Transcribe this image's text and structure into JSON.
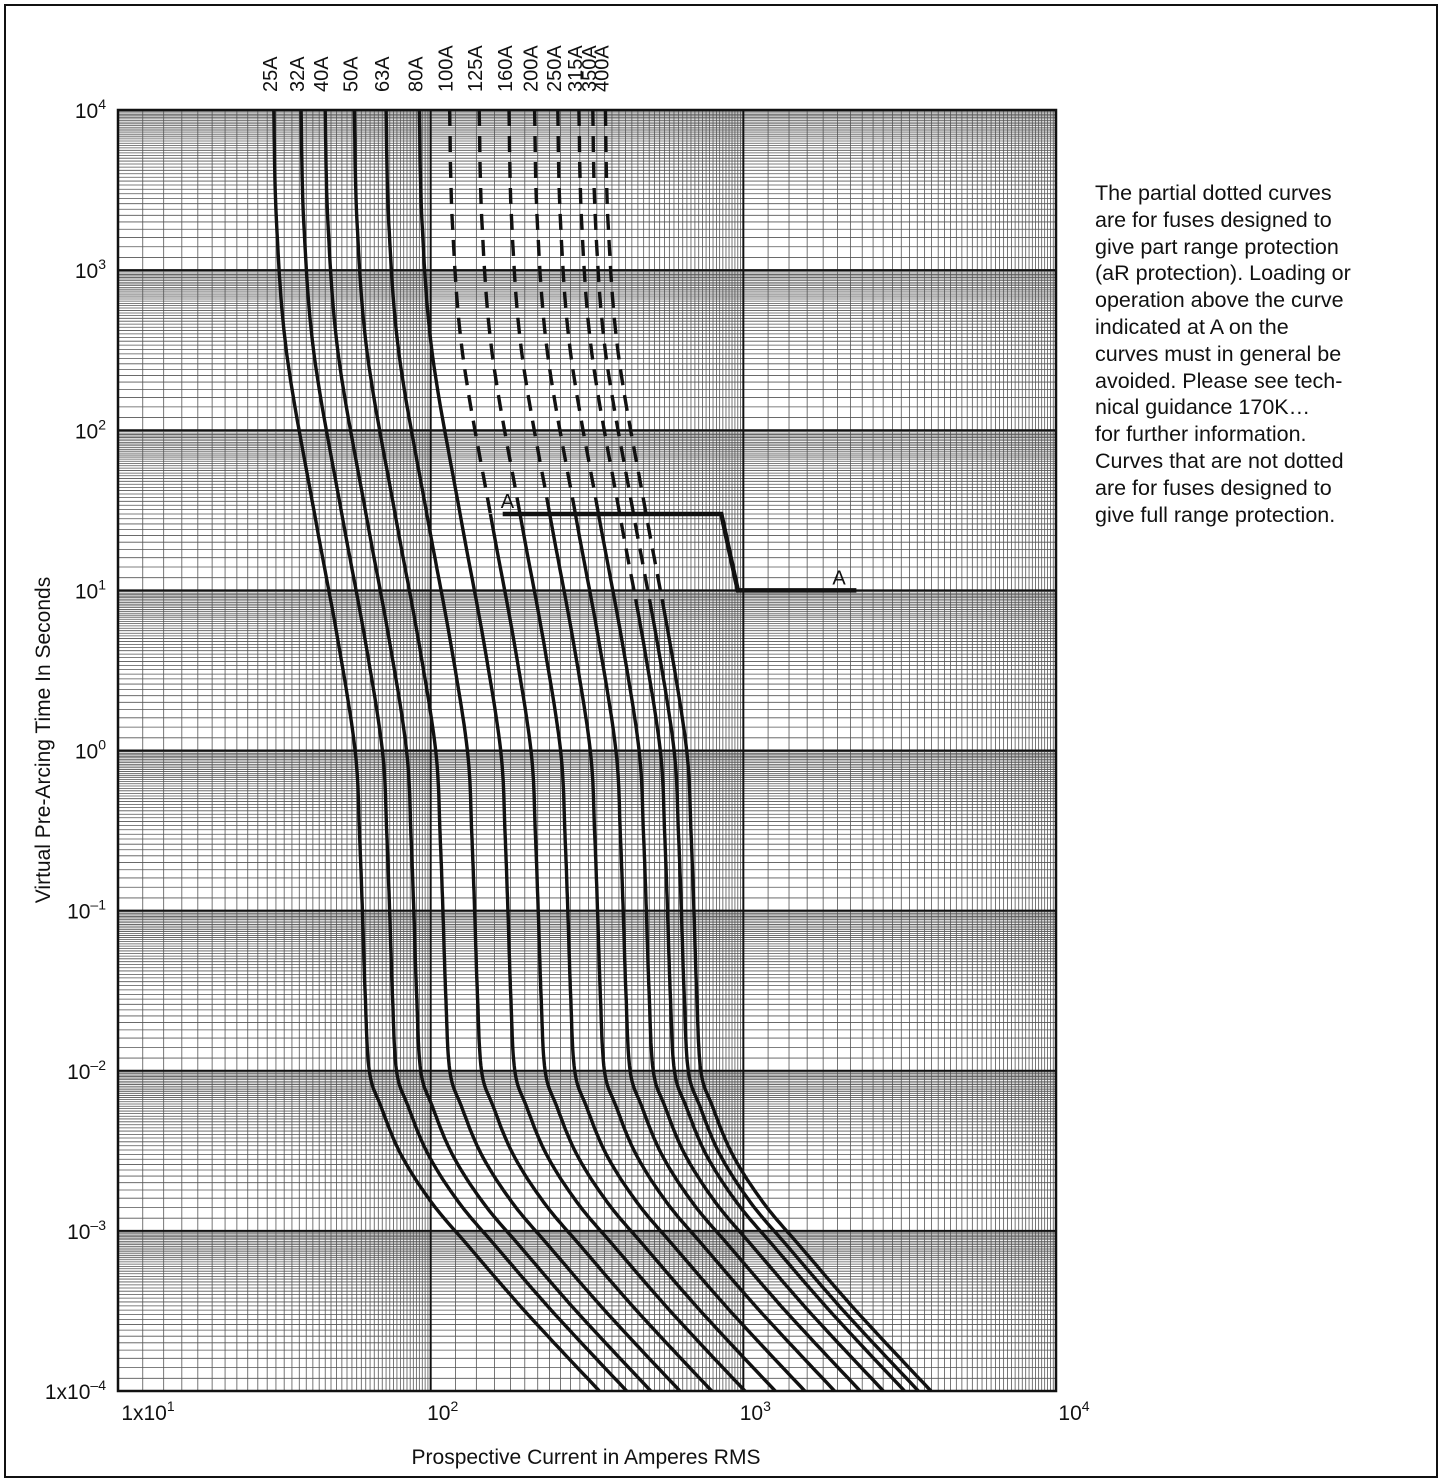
{
  "chart_data": {
    "type": "line",
    "scale": "log-log",
    "xlabel": "Prospective Current in Amperes RMS",
    "ylabel": "Virtual Pre-Arcing Time In Seconds",
    "xlim": [
      10,
      10000
    ],
    "ylim": [
      0.0001,
      10000
    ],
    "x_ticks": [
      {
        "value": 10,
        "base": "1x10",
        "exp": "1"
      },
      {
        "value": 100,
        "base": "10",
        "exp": "2"
      },
      {
        "value": 1000,
        "base": "10",
        "exp": "3"
      },
      {
        "value": 10000,
        "base": "10",
        "exp": "4"
      }
    ],
    "y_ticks": [
      {
        "value": 10000,
        "base": "10",
        "exp": "4"
      },
      {
        "value": 1000,
        "base": "10",
        "exp": "3"
      },
      {
        "value": 100,
        "base": "10",
        "exp": "2"
      },
      {
        "value": 10,
        "base": "10",
        "exp": "1"
      },
      {
        "value": 1,
        "base": "10",
        "exp": "0"
      },
      {
        "value": 0.1,
        "base": "10",
        "exp": "–1"
      },
      {
        "value": 0.01,
        "base": "10",
        "exp": "–2"
      },
      {
        "value": 0.001,
        "base": "10",
        "exp": "–3"
      },
      {
        "value": 0.0001,
        "base": "1x10",
        "exp": "–4"
      }
    ],
    "grid": true,
    "curve_shape": {
      "points": [
        [
          1.0,
          10000
        ],
        [
          1.02,
          2000
        ],
        [
          1.1,
          300
        ],
        [
          1.35,
          30
        ],
        [
          1.6,
          5
        ],
        [
          1.82,
          1.0
        ],
        [
          1.88,
          0.3
        ],
        [
          1.92,
          0.1
        ],
        [
          1.96,
          0.03
        ],
        [
          2.02,
          0.01
        ],
        [
          2.2,
          0.006
        ],
        [
          2.55,
          0.003
        ],
        [
          3.2,
          0.0015
        ],
        [
          4.2,
          0.0008
        ],
        [
          6.5,
          0.0003
        ],
        [
          11.0,
          0.0001
        ]
      ]
    },
    "series": [
      {
        "name": "25A",
        "i_ref": 31.5,
        "dashed": false
      },
      {
        "name": "32A",
        "i_ref": 38.5,
        "dashed": false
      },
      {
        "name": "40A",
        "i_ref": 46,
        "dashed": false
      },
      {
        "name": "50A",
        "i_ref": 57,
        "dashed": false
      },
      {
        "name": "63A",
        "i_ref": 72,
        "dashed": false
      },
      {
        "name": "80A",
        "i_ref": 92,
        "dashed": false
      },
      {
        "name": "100A",
        "i_ref": 115,
        "dashed": true,
        "solid_from_y": 30
      },
      {
        "name": "125A",
        "i_ref": 143,
        "dashed": true,
        "solid_from_y": 30
      },
      {
        "name": "160A",
        "i_ref": 178,
        "dashed": true,
        "solid_from_y": 30
      },
      {
        "name": "200A",
        "i_ref": 215,
        "dashed": true,
        "solid_from_y": 30
      },
      {
        "name": "250A",
        "i_ref": 255,
        "dashed": true,
        "solid_from_y": 30
      },
      {
        "name": "315A",
        "i_ref": 298,
        "dashed": true,
        "solid_from_y": 10
      },
      {
        "name": "350A",
        "i_ref": 330,
        "dashed": true,
        "solid_from_y": 10
      },
      {
        "name": "400A",
        "i_ref": 362,
        "dashed": true,
        "solid_from_y": 10
      }
    ],
    "annotations": [
      {
        "label": "A",
        "segment": [
          [
            170,
            30
          ],
          [
            850,
            30
          ],
          [
            960,
            10
          ],
          [
            2300,
            10
          ]
        ]
      }
    ]
  },
  "marker_label": "A",
  "note_lines": [
    "The partial dotted curves",
    "are for fuses designed to",
    "give part range protection",
    "(aR protection). Loading or",
    "operation above the curve",
    "indicated at A on the",
    "curves must in general be",
    "avoided. Please see tech-",
    "nical guidance 170K…",
    "for further information.",
    "Curves that are not dotted",
    "are for fuses designed to",
    "give full range protection."
  ]
}
